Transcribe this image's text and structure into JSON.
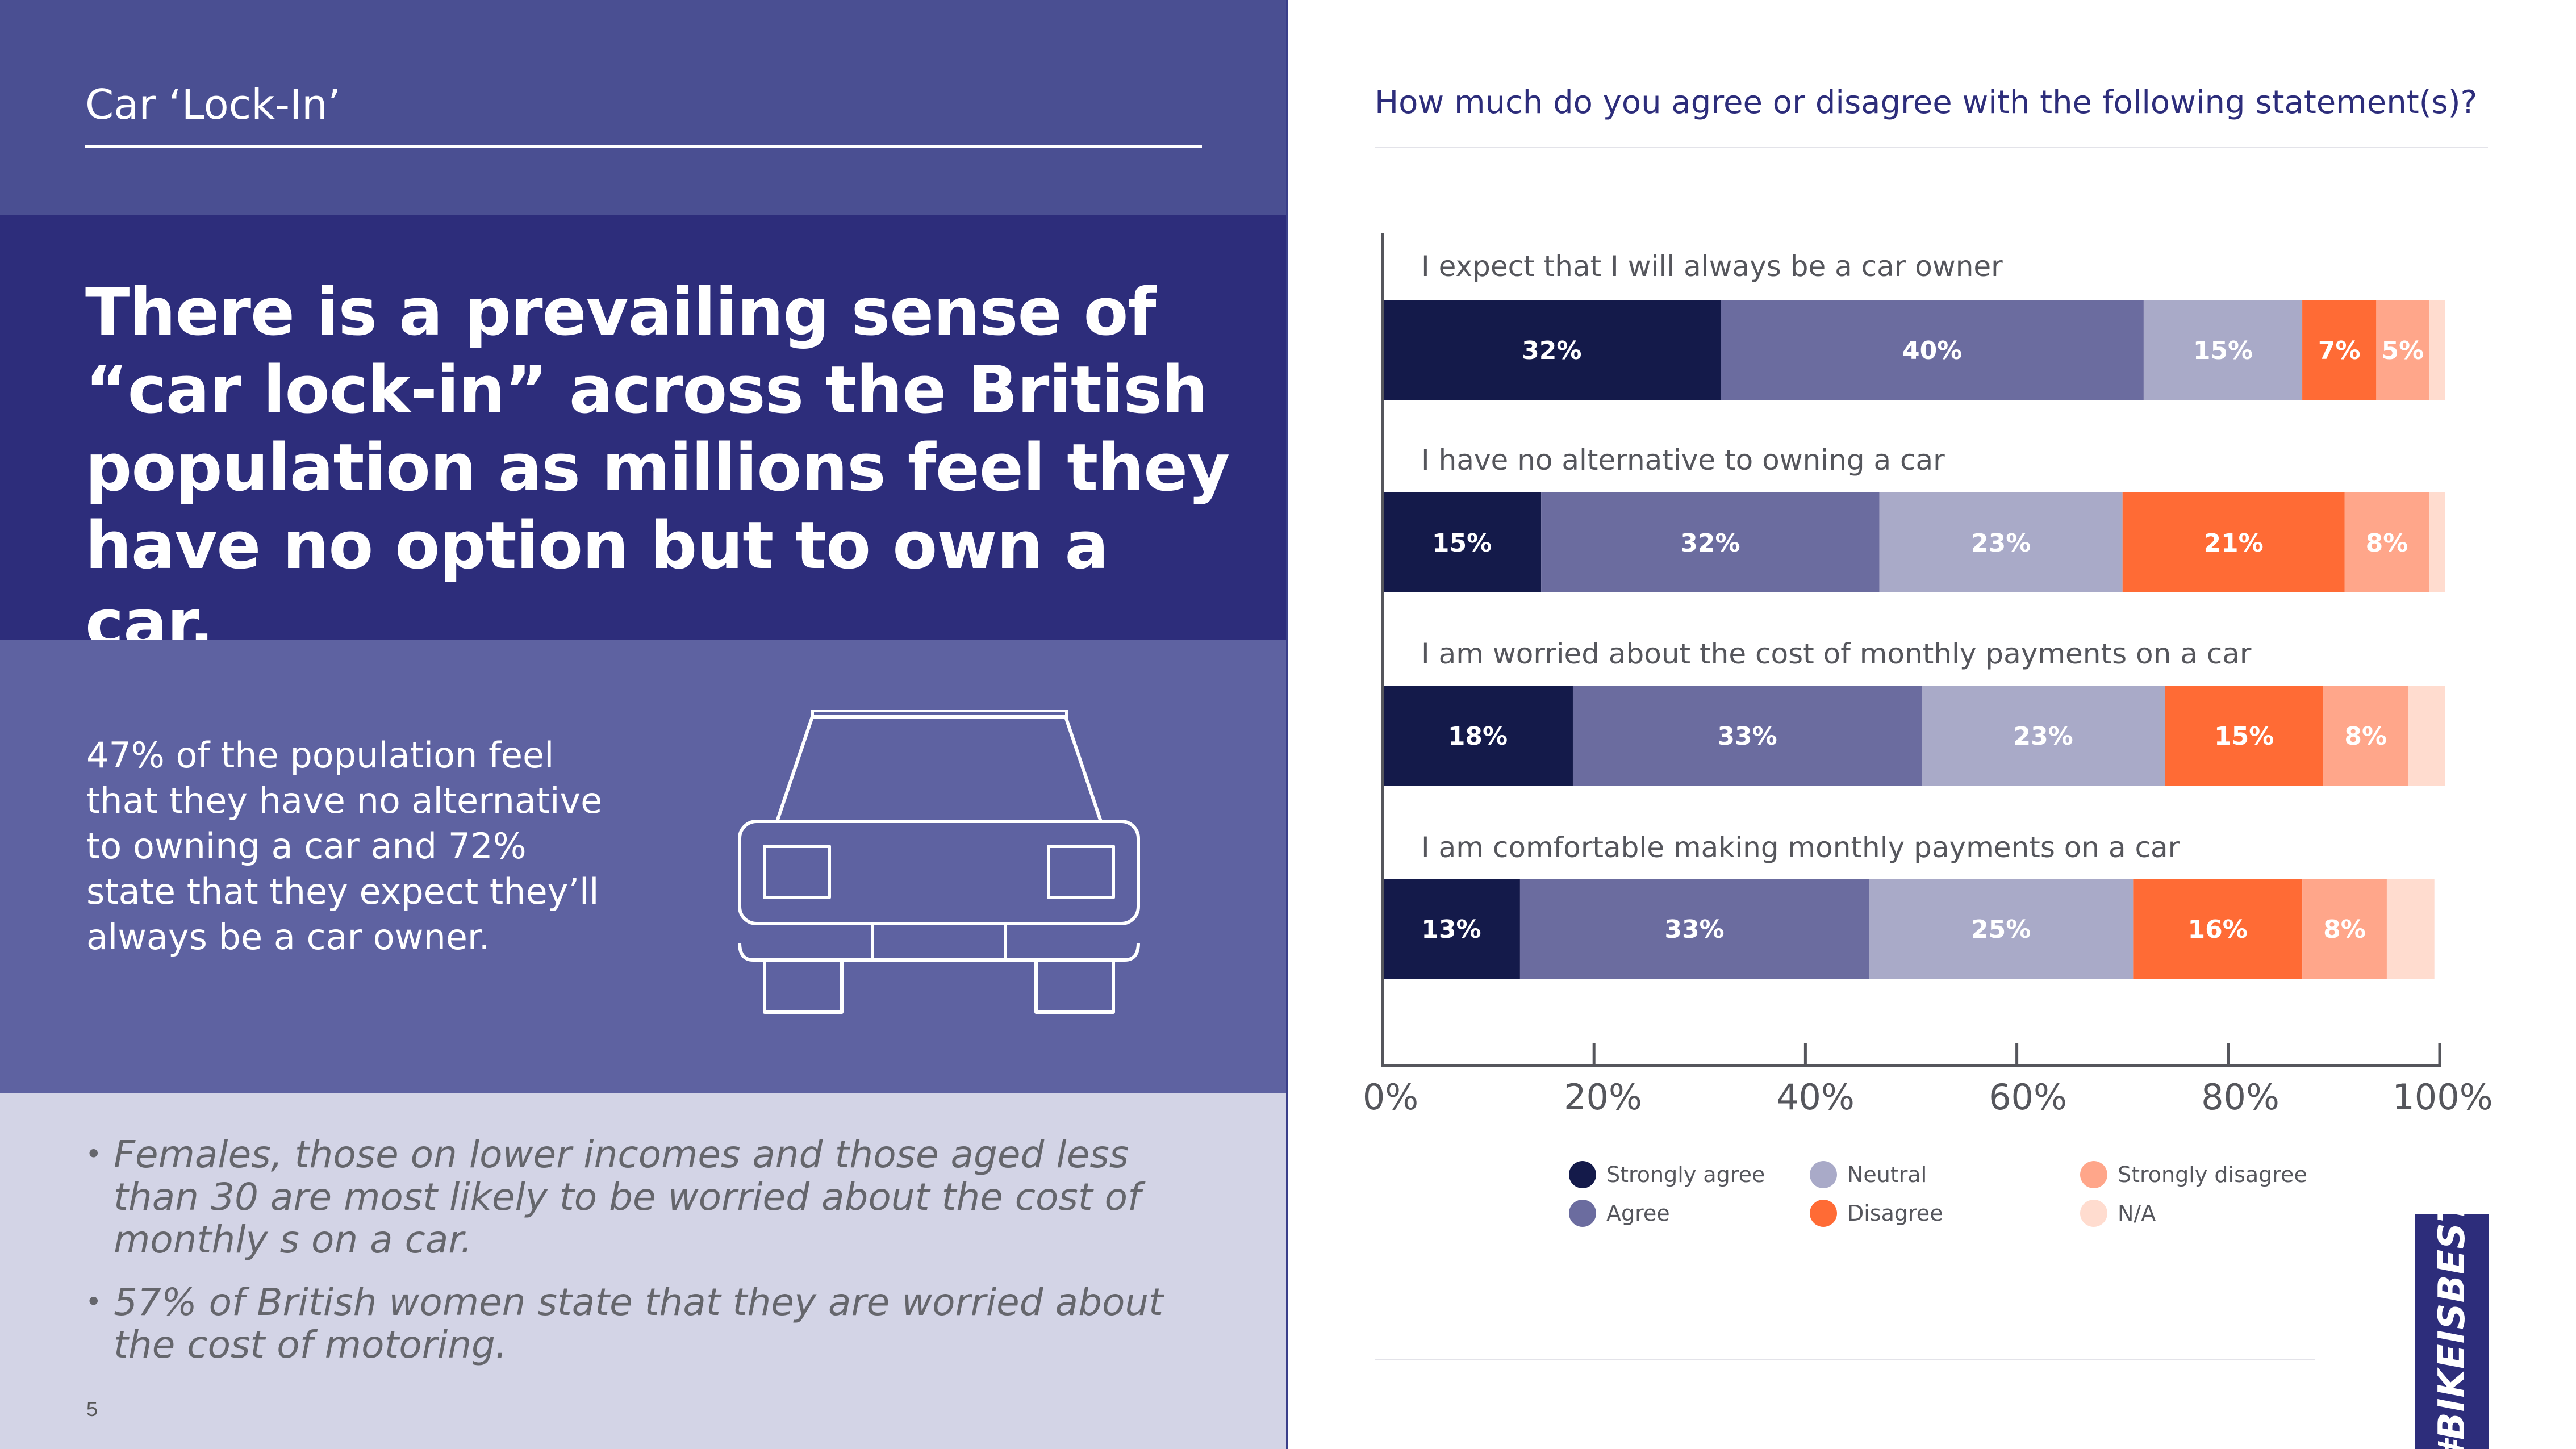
{
  "section_title": "Car ‘Lock-In’",
  "headline": "There is a prevailing sense of “car lock-in” across the British population as millions feel they have no option but to own a car.",
  "stat_text": "47% of the population feel that they have no alternative to owning a car and 72% state that they expect they’ll always be a car owner.",
  "notes": [
    "Females, those on lower incomes and those aged less than 30 are most likely to be worried about the cost of monthly s on a car.",
    "57% of British women state that they are worried about the cost of motoring."
  ],
  "bullet_char": "•",
  "page_number": "5",
  "question": "How much do you agree or disagree with the following statement(s)?",
  "brand_tag": "#BIKEISBEST",
  "icons": [
    "car-icon"
  ],
  "chart_data": {
    "type": "bar",
    "orientation": "horizontal",
    "stacked": true,
    "categories": [
      "I expect that I will always be a car owner",
      "I have no alternative to owning a car",
      "I am worried about the cost of monthly payments on a car",
      "I am comfortable making monthly payments on a car"
    ],
    "series": [
      {
        "name": "Strongly agree",
        "color": "#141a4a",
        "label_color": "#ffffff",
        "values": [
          32,
          15,
          18,
          13
        ],
        "labels": [
          "32%",
          "15%",
          "18%",
          "13%"
        ]
      },
      {
        "name": "Agree",
        "color": "#6b6c9f",
        "label_color": "#ffffff",
        "values": [
          40,
          32,
          33,
          33
        ],
        "labels": [
          "40%",
          "32%",
          "33%",
          "33%"
        ]
      },
      {
        "name": "Neutral",
        "color": "#a9aac8",
        "label_color": "#ffffff",
        "values": [
          15,
          23,
          23,
          25
        ],
        "labels": [
          "15%",
          "23%",
          "23%",
          "25%"
        ]
      },
      {
        "name": "Disagree",
        "color": "#ff6b35",
        "label_color": "#ffffff",
        "values": [
          7,
          21,
          15,
          16
        ],
        "labels": [
          "7%",
          "21%",
          "15%",
          "16%"
        ]
      },
      {
        "name": "Strongly disagree",
        "color": "#ffa68a",
        "label_color": "#ffffff",
        "values": [
          5,
          8,
          8,
          8
        ],
        "labels": [
          "5%",
          "8%",
          "8%",
          "8%"
        ]
      },
      {
        "name": "N/A",
        "color": "#ffdccf",
        "label_color": "#ffffff",
        "values": [
          1.5,
          1.5,
          3.5,
          4.5
        ],
        "labels": [
          "",
          "",
          "",
          ""
        ]
      }
    ],
    "xlim": [
      0,
      100
    ],
    "xticks": [
      0,
      20,
      40,
      60,
      80,
      100
    ],
    "xtick_labels": [
      "0%",
      "20%",
      "40%",
      "60%",
      "80%",
      "100%"
    ],
    "legend_placement": "bottom",
    "grid": false
  }
}
